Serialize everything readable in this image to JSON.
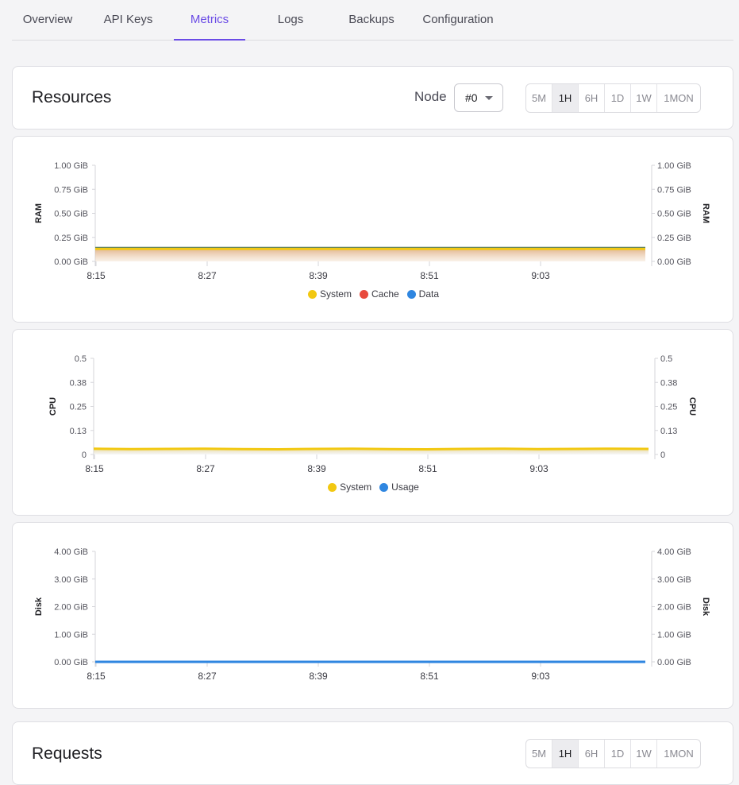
{
  "tabs": [
    {
      "label": "Overview",
      "active": false
    },
    {
      "label": "API Keys",
      "active": false
    },
    {
      "label": "Metrics",
      "active": true
    },
    {
      "label": "Logs",
      "active": false
    },
    {
      "label": "Backups",
      "active": false
    },
    {
      "label": "Configuration",
      "active": false
    }
  ],
  "resources": {
    "title": "Resources",
    "node_label": "Node",
    "node_value": "#0",
    "ranges": [
      "5M",
      "1H",
      "6H",
      "1D",
      "1W",
      "1MON"
    ],
    "active_range": "1H"
  },
  "requests": {
    "title": "Requests",
    "ranges": [
      "5M",
      "1H",
      "6H",
      "1D",
      "1W",
      "1MON"
    ],
    "active_range": "1H"
  },
  "colors": {
    "accent": "#6b4ce6",
    "system": "#f2c811",
    "cache": "#e84a3c",
    "data": "#2f86e0",
    "usage": "#2f86e0"
  },
  "chart_data": [
    {
      "type": "area",
      "ylabel": "RAM",
      "yticks": [
        "1.00 GiB",
        "0.75 GiB",
        "0.50 GiB",
        "0.25 GiB",
        "0.00 GiB"
      ],
      "ylim": [
        0,
        1
      ],
      "x_ticks": [
        "8:15",
        "8:27",
        "8:39",
        "8:51",
        "9:03"
      ],
      "legend": [
        {
          "name": "System",
          "color": "#f2c811"
        },
        {
          "name": "Cache",
          "color": "#e84a3c"
        },
        {
          "name": "Data",
          "color": "#2f86e0"
        }
      ],
      "series": [
        {
          "name": "System",
          "values": [
            0.13,
            0.13,
            0.13,
            0.13,
            0.13,
            0.13
          ]
        }
      ]
    },
    {
      "type": "area",
      "ylabel": "CPU",
      "yticks": [
        "0.5",
        "0.38",
        "0.25",
        "0.13",
        "0"
      ],
      "ylim": [
        0,
        0.5
      ],
      "x_ticks": [
        "8:15",
        "8:27",
        "8:39",
        "8:51",
        "9:03"
      ],
      "legend": [
        {
          "name": "System",
          "color": "#f2c811"
        },
        {
          "name": "Usage",
          "color": "#2f86e0"
        }
      ],
      "series": [
        {
          "name": "System",
          "values": [
            0.03,
            0.028,
            0.029,
            0.03,
            0.028,
            0.027,
            0.029,
            0.03,
            0.028,
            0.027,
            0.029,
            0.03,
            0.028,
            0.029,
            0.03,
            0.029
          ]
        }
      ]
    },
    {
      "type": "line",
      "ylabel": "Disk",
      "yticks": [
        "4.00 GiB",
        "3.00 GiB",
        "2.00 GiB",
        "1.00 GiB",
        "0.00 GiB"
      ],
      "ylim": [
        0,
        4
      ],
      "x_ticks": [
        "8:15",
        "8:27",
        "8:39",
        "8:51",
        "9:03"
      ],
      "legend": [],
      "series": [
        {
          "name": "Disk",
          "values": [
            0,
            0,
            0,
            0,
            0,
            0
          ]
        }
      ]
    }
  ]
}
